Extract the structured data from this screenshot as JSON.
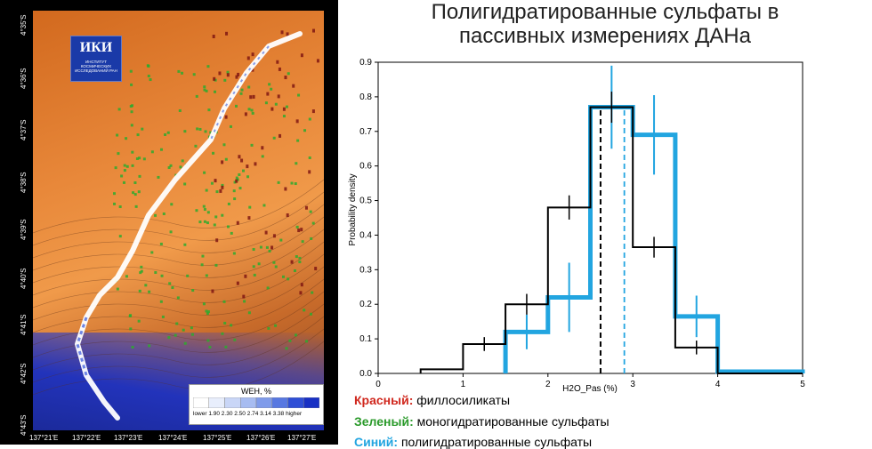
{
  "slide": {
    "title_line1": "Полигидратированные сульфаты в",
    "title_line2": "пассивных измерениях ДАНа"
  },
  "map": {
    "logo_text": "ИКИ",
    "logo_subtext": "ИНСТИТУТ КОСМИЧЕСКИХ ИССЛЕДОВАНИЙ РАН",
    "lon_labels": [
      "137°21'E",
      "137°22'E",
      "137°23'E",
      "137°24'E",
      "137°25'E",
      "137°26'E",
      "137°27'E"
    ],
    "lat_labels": [
      "4°35'S",
      "4°36'S",
      "4°37'S",
      "4°38'S",
      "4°39'S",
      "4°40'S",
      "4°41'S",
      "4°42'S",
      "4°43'S"
    ],
    "legend": {
      "title": "WEH, %",
      "labels": [
        "lower",
        "1.90",
        "2.30",
        "2.50",
        "2.74",
        "3.14",
        "3.38",
        "higher"
      ],
      "colors": [
        "#ffffff",
        "#e8eefc",
        "#c9d6f7",
        "#a7bcf1",
        "#7f9bea",
        "#5878e1",
        "#2f4fd6",
        "#1830c4"
      ]
    },
    "colors": {
      "ice_track": "#ffffff",
      "green_pixels": "#2eaa2e",
      "blue_region": "#2233bb"
    }
  },
  "chart_data": {
    "type": "line",
    "xlabel": "H2O_Pas (%)",
    "ylabel": "Probability density",
    "xlim": [
      0,
      5
    ],
    "ylim": [
      0,
      0.9
    ],
    "xticks": [
      0,
      1,
      2,
      3,
      4,
      5
    ],
    "yticks": [
      0,
      0.1,
      0.2,
      0.3,
      0.4,
      0.5,
      0.6,
      0.7,
      0.8,
      0.9
    ],
    "series": [
      {
        "color": "#000000",
        "bin_edges": [
          0.5,
          1.0,
          1.5,
          2.0,
          2.5,
          3.0,
          3.5,
          4.0,
          5.0
        ],
        "values": [
          0.012,
          0.085,
          0.2,
          0.48,
          0.77,
          0.365,
          0.075,
          0.0
        ],
        "errors": [
          0.0,
          0.02,
          0.03,
          0.035,
          0.045,
          0.03,
          0.02,
          0.0
        ],
        "mean": 2.62
      },
      {
        "color": "#22a5e0",
        "bin_edges": [
          1.5,
          2.0,
          2.5,
          3.0,
          3.5,
          4.0,
          5.0
        ],
        "values": [
          0.12,
          0.22,
          0.77,
          0.69,
          0.165,
          0.005
        ],
        "errors": [
          0.05,
          0.1,
          0.12,
          0.115,
          0.06,
          0.0
        ],
        "mean": 2.9
      }
    ]
  },
  "legend_text": {
    "red_key": "Красный:",
    "red_text": " филлосиликаты",
    "red_color": "#d0281e",
    "green_key": "Зеленый:",
    "green_text": " моногидратированные сульфаты",
    "green_color": "#2a9a2a",
    "blue_key": "Синий:",
    "blue_text": " полигидратированные сульфаты",
    "blue_color": "#22a5e0"
  }
}
